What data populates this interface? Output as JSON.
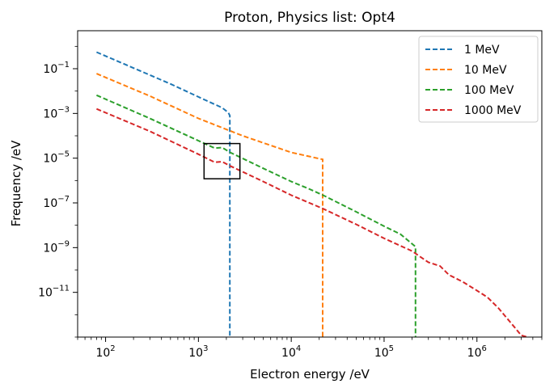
{
  "chart_data": {
    "type": "line",
    "title": "Proton, Physics list: Opt4",
    "xlabel": "Electron energy /eV",
    "ylabel": "Frequency /eV",
    "x_scale": "log",
    "y_scale": "log",
    "xlim": [
      50,
      5000000
    ],
    "ylim": [
      1e-13,
      5
    ],
    "x_ticks": [
      {
        "value": 100,
        "label": "10^2"
      },
      {
        "value": 1000,
        "label": "10^3"
      },
      {
        "value": 10000,
        "label": "10^4"
      },
      {
        "value": 100000,
        "label": "10^5"
      },
      {
        "value": 1000000,
        "label": "10^6"
      }
    ],
    "y_ticks": [
      {
        "value": 0.1,
        "label": "10^-1"
      },
      {
        "value": 0.001,
        "label": "10^-3"
      },
      {
        "value": 1e-05,
        "label": "10^-5"
      },
      {
        "value": 1e-07,
        "label": "10^-7"
      },
      {
        "value": 1e-09,
        "label": "10^-9"
      },
      {
        "value": 1e-11,
        "label": "10^-11"
      }
    ],
    "grid": false,
    "legend_position": "top-right",
    "series": [
      {
        "name": "1 MeV",
        "color": "#1f77b4",
        "style": "dashed",
        "points": [
          [
            80,
            0.55
          ],
          [
            500,
            0.021
          ],
          [
            1000,
            0.0055
          ],
          [
            1800,
            0.0018
          ],
          [
            2100,
            0.0011
          ],
          [
            2180,
            0.0008
          ],
          [
            2180,
            1e-13
          ]
        ]
      },
      {
        "name": "10 MeV",
        "color": "#ff7f0e",
        "style": "dashed",
        "points": [
          [
            80,
            0.06
          ],
          [
            300,
            0.006
          ],
          [
            1000,
            0.0006
          ],
          [
            3000,
            0.0001
          ],
          [
            10000,
            1.8e-05
          ],
          [
            21800,
            8.8e-06
          ],
          [
            21800,
            1e-13
          ]
        ]
      },
      {
        "name": "100 MeV",
        "color": "#2ca02c",
        "style": "dashed",
        "points": [
          [
            80,
            0.0065
          ],
          [
            300,
            0.0006
          ],
          [
            1000,
            6e-05
          ],
          [
            1500,
            2.8e-05
          ],
          [
            1800,
            3e-05
          ],
          [
            2200,
            1.8e-05
          ],
          [
            5000,
            3.5e-06
          ],
          [
            10000,
            9e-07
          ],
          [
            15000,
            4.5e-07
          ],
          [
            22000,
            2.2e-07
          ],
          [
            50000,
            4e-08
          ],
          [
            100000,
            9e-09
          ],
          [
            150000,
            4e-09
          ],
          [
            218000,
            1.1e-09
          ],
          [
            218000,
            1e-13
          ]
        ]
      },
      {
        "name": "1000 MeV",
        "color": "#d62728",
        "style": "dashed",
        "points": [
          [
            80,
            0.0016
          ],
          [
            300,
            0.00016
          ],
          [
            1000,
            1.5e-05
          ],
          [
            1500,
            6.5e-06
          ],
          [
            1800,
            7e-06
          ],
          [
            2200,
            4.5e-06
          ],
          [
            5000,
            9e-07
          ],
          [
            10000,
            2.2e-07
          ],
          [
            22000,
            5.5e-08
          ],
          [
            50000,
            1.1e-08
          ],
          [
            100000,
            2.6e-09
          ],
          [
            200000,
            7e-10
          ],
          [
            300000,
            2.2e-10
          ],
          [
            400000,
            1.5e-10
          ],
          [
            500000,
            6e-11
          ],
          [
            700000,
            3e-11
          ],
          [
            1000000,
            1.2e-11
          ],
          [
            1300000,
            6e-12
          ],
          [
            1700000,
            2e-12
          ],
          [
            2000000,
            9e-13
          ],
          [
            2500000,
            3e-13
          ],
          [
            3000000,
            1.2e-13
          ],
          [
            3500000,
            1e-13
          ]
        ]
      }
    ],
    "annotations": [
      {
        "type": "rectangle",
        "x_range": [
          1150,
          2800
        ],
        "y_range": [
          1.2e-06,
          4.5e-05
        ]
      }
    ]
  }
}
